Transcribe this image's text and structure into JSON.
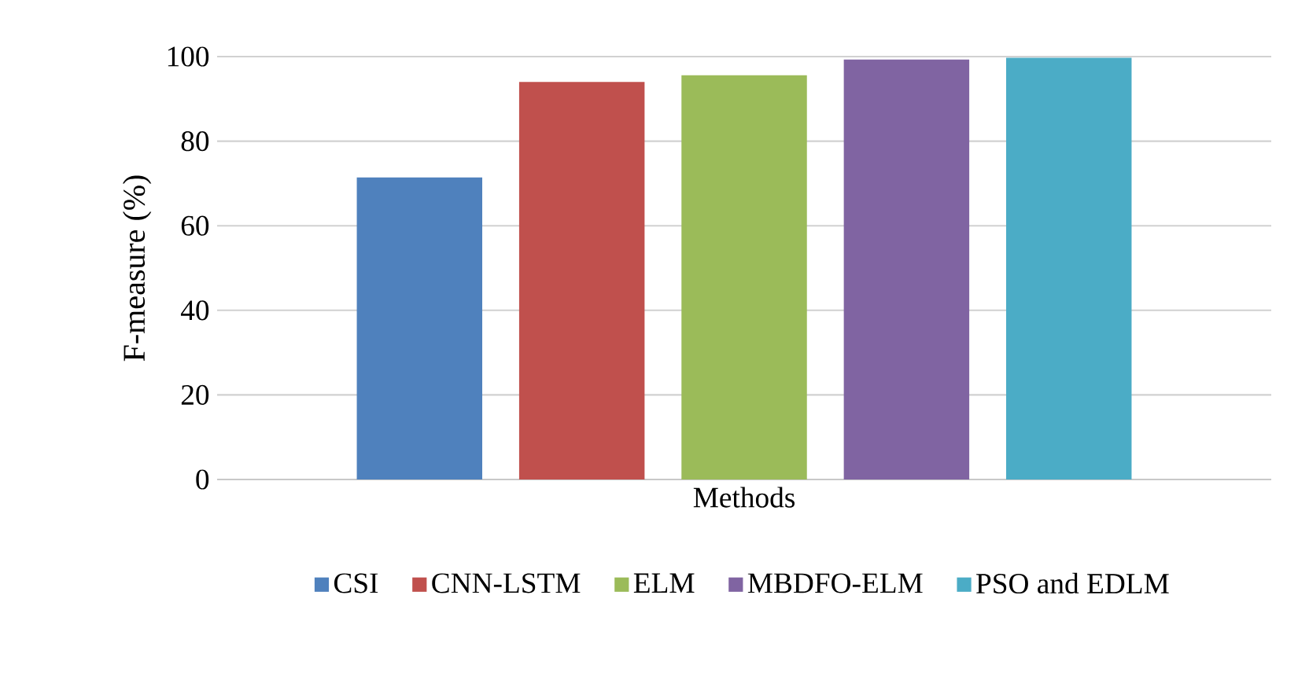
{
  "chart_data": {
    "type": "bar",
    "ylabel": "F-measure (%)",
    "categories": [
      "Methods"
    ],
    "series": [
      {
        "name": "CSI",
        "color": "#4f81bd",
        "values": [
          71.4
        ]
      },
      {
        "name": "CNN-LSTM",
        "color": "#c0504d",
        "values": [
          94.0
        ]
      },
      {
        "name": "ELM",
        "color": "#9bbb59",
        "values": [
          95.6
        ]
      },
      {
        "name": "MBDFO-ELM",
        "color": "#8064a2",
        "values": [
          99.3
        ]
      },
      {
        "name": "PSO and EDLM",
        "color": "#4bacc6",
        "values": [
          99.7
        ]
      }
    ],
    "ylim": [
      0,
      100
    ],
    "yticks": [
      0,
      20,
      40,
      60,
      80,
      100
    ],
    "grid": "y",
    "legend": "bottom"
  }
}
